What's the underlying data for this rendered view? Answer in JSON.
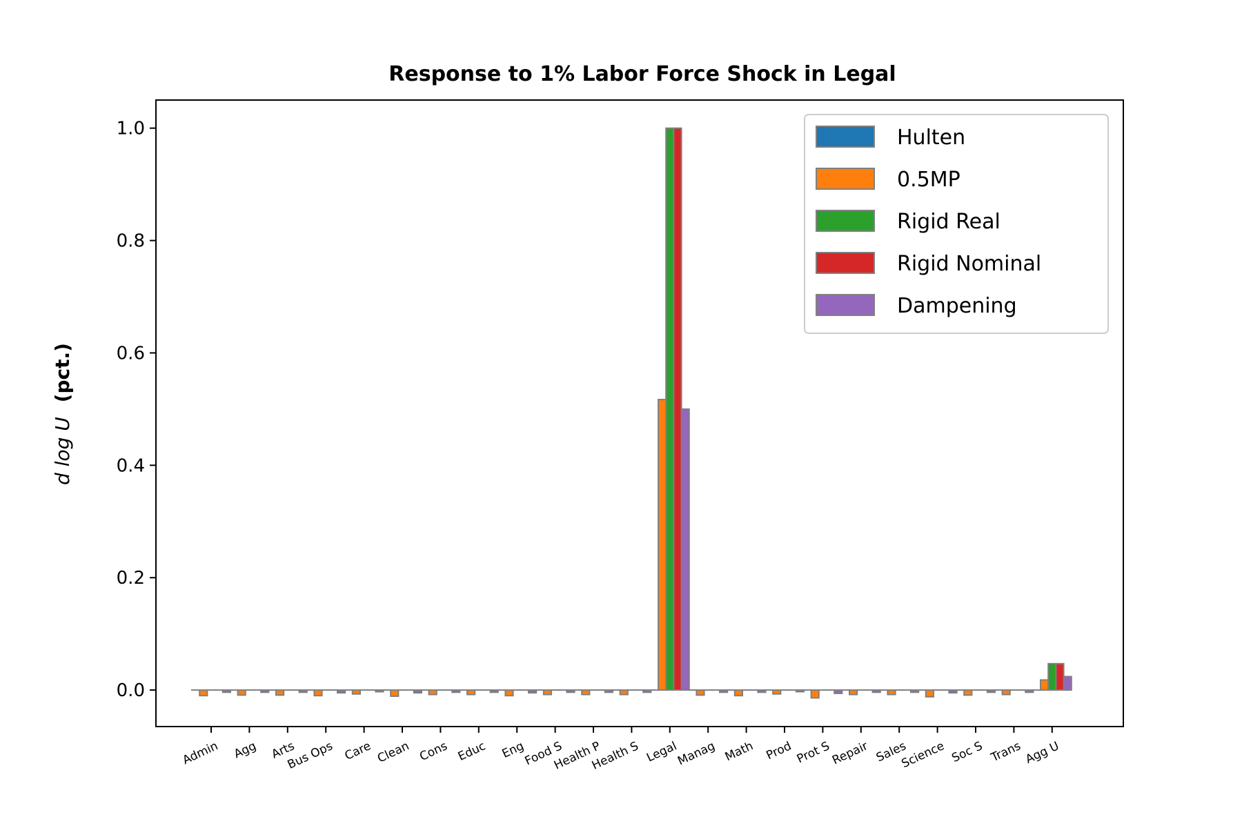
{
  "chart_data": {
    "type": "bar",
    "title": "Response to 1% Labor Force Shock in Legal",
    "ylabel_math": "d log U",
    "ylabel_unit": "(pct.)",
    "xlabel": "",
    "ylim": [
      -0.065,
      1.05
    ],
    "yticks": [
      0.0,
      0.2,
      0.4,
      0.6,
      0.8,
      1.0
    ],
    "ytick_labels": [
      "0.0",
      "0.2",
      "0.4",
      "0.6",
      "0.8",
      "1.0"
    ],
    "legend_position": "top-right",
    "bar_edge_color": "#808080",
    "categories": [
      "Admin",
      "Agg",
      "Arts",
      "Bus Ops",
      "Care",
      "Clean",
      "Cons",
      "Educ",
      "Eng",
      "Food S",
      "Health P",
      "Health S",
      "Legal",
      "Manag",
      "Math",
      "Prod",
      "Prot S",
      "Repair",
      "Sales",
      "Science",
      "Soc S",
      "Trans",
      "Agg U"
    ],
    "series": [
      {
        "name": "Hulten",
        "color": "#1f77b4",
        "values": [
          0,
          0,
          0,
          0,
          0,
          0,
          0,
          0,
          0,
          0,
          0,
          0,
          0,
          0,
          0,
          0,
          0,
          0,
          0,
          0,
          0,
          0,
          0
        ]
      },
      {
        "name": "0.5MP",
        "color": "#ff7f0e",
        "values": [
          -0.01,
          -0.009,
          -0.009,
          -0.01,
          -0.007,
          -0.011,
          -0.008,
          -0.008,
          -0.01,
          -0.008,
          -0.008,
          -0.008,
          0.517,
          -0.009,
          -0.01,
          -0.007,
          -0.014,
          -0.008,
          -0.008,
          -0.012,
          -0.009,
          -0.008,
          0.018
        ]
      },
      {
        "name": "Rigid Real",
        "color": "#2ca02c",
        "values": [
          0,
          0,
          0,
          0,
          0,
          0,
          0,
          0,
          0,
          0,
          0,
          0,
          1.0,
          0,
          0,
          0,
          0,
          0,
          0,
          0,
          0,
          0,
          0.047
        ]
      },
      {
        "name": "Rigid Nominal",
        "color": "#d62728",
        "values": [
          0,
          0,
          0,
          0,
          0,
          0,
          0,
          0,
          0,
          0,
          0,
          0,
          1.0,
          0,
          0,
          0,
          0,
          0,
          0,
          0,
          0,
          0,
          0.047
        ]
      },
      {
        "name": "Dampening",
        "color": "#9467bd",
        "values": [
          -0.004,
          -0.004,
          -0.004,
          -0.005,
          -0.003,
          -0.005,
          -0.004,
          -0.004,
          -0.005,
          -0.004,
          -0.004,
          -0.004,
          0.5,
          -0.004,
          -0.004,
          -0.003,
          -0.006,
          -0.004,
          -0.004,
          -0.005,
          -0.004,
          -0.004,
          0.024
        ]
      }
    ]
  }
}
